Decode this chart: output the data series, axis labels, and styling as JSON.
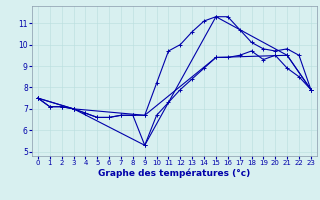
{
  "xlabel": "Graphe des températures (°c)",
  "bg_color": "#d8f0f0",
  "line_color": "#0000aa",
  "grid_color": "#b8dede",
  "xlim": [
    -0.5,
    23.5
  ],
  "ylim": [
    4.8,
    11.8
  ],
  "xticks": [
    0,
    1,
    2,
    3,
    4,
    5,
    6,
    7,
    8,
    9,
    10,
    11,
    12,
    13,
    14,
    15,
    16,
    17,
    18,
    19,
    20,
    21,
    22,
    23
  ],
  "yticks": [
    5,
    6,
    7,
    8,
    9,
    10,
    11
  ],
  "series": {
    "line1_x": [
      0,
      1,
      2,
      3,
      4,
      5,
      6,
      7,
      8,
      9,
      10,
      11,
      12,
      13,
      14,
      15,
      16,
      17,
      18,
      19,
      20,
      21,
      22,
      23
    ],
    "line1_y": [
      7.5,
      7.1,
      7.1,
      7.0,
      6.8,
      6.6,
      6.6,
      6.7,
      6.7,
      5.3,
      6.7,
      7.3,
      7.9,
      8.4,
      8.9,
      9.4,
      9.4,
      9.5,
      9.7,
      9.3,
      9.5,
      8.9,
      8.5,
      7.9
    ],
    "line2_x": [
      0,
      1,
      2,
      3,
      4,
      5,
      6,
      7,
      8,
      9,
      10,
      11,
      12,
      13,
      14,
      15,
      16,
      17,
      18,
      19,
      20,
      21,
      22,
      23
    ],
    "line2_y": [
      7.5,
      7.1,
      7.1,
      7.0,
      6.8,
      6.6,
      6.6,
      6.7,
      6.7,
      6.7,
      8.2,
      9.7,
      10.0,
      10.6,
      11.1,
      11.3,
      11.3,
      10.7,
      10.1,
      9.8,
      9.7,
      9.8,
      9.5,
      7.9
    ],
    "line3_x": [
      0,
      3,
      9,
      15,
      21,
      23
    ],
    "line3_y": [
      7.5,
      7.0,
      5.3,
      11.3,
      9.5,
      7.9
    ],
    "line4_x": [
      0,
      3,
      9,
      15,
      21,
      23
    ],
    "line4_y": [
      7.5,
      7.0,
      6.7,
      9.4,
      9.5,
      7.9
    ]
  },
  "xlabel_fontsize": 6.5,
  "tick_fontsize": 5.0,
  "linewidth": 0.8,
  "markersize": 3.0
}
